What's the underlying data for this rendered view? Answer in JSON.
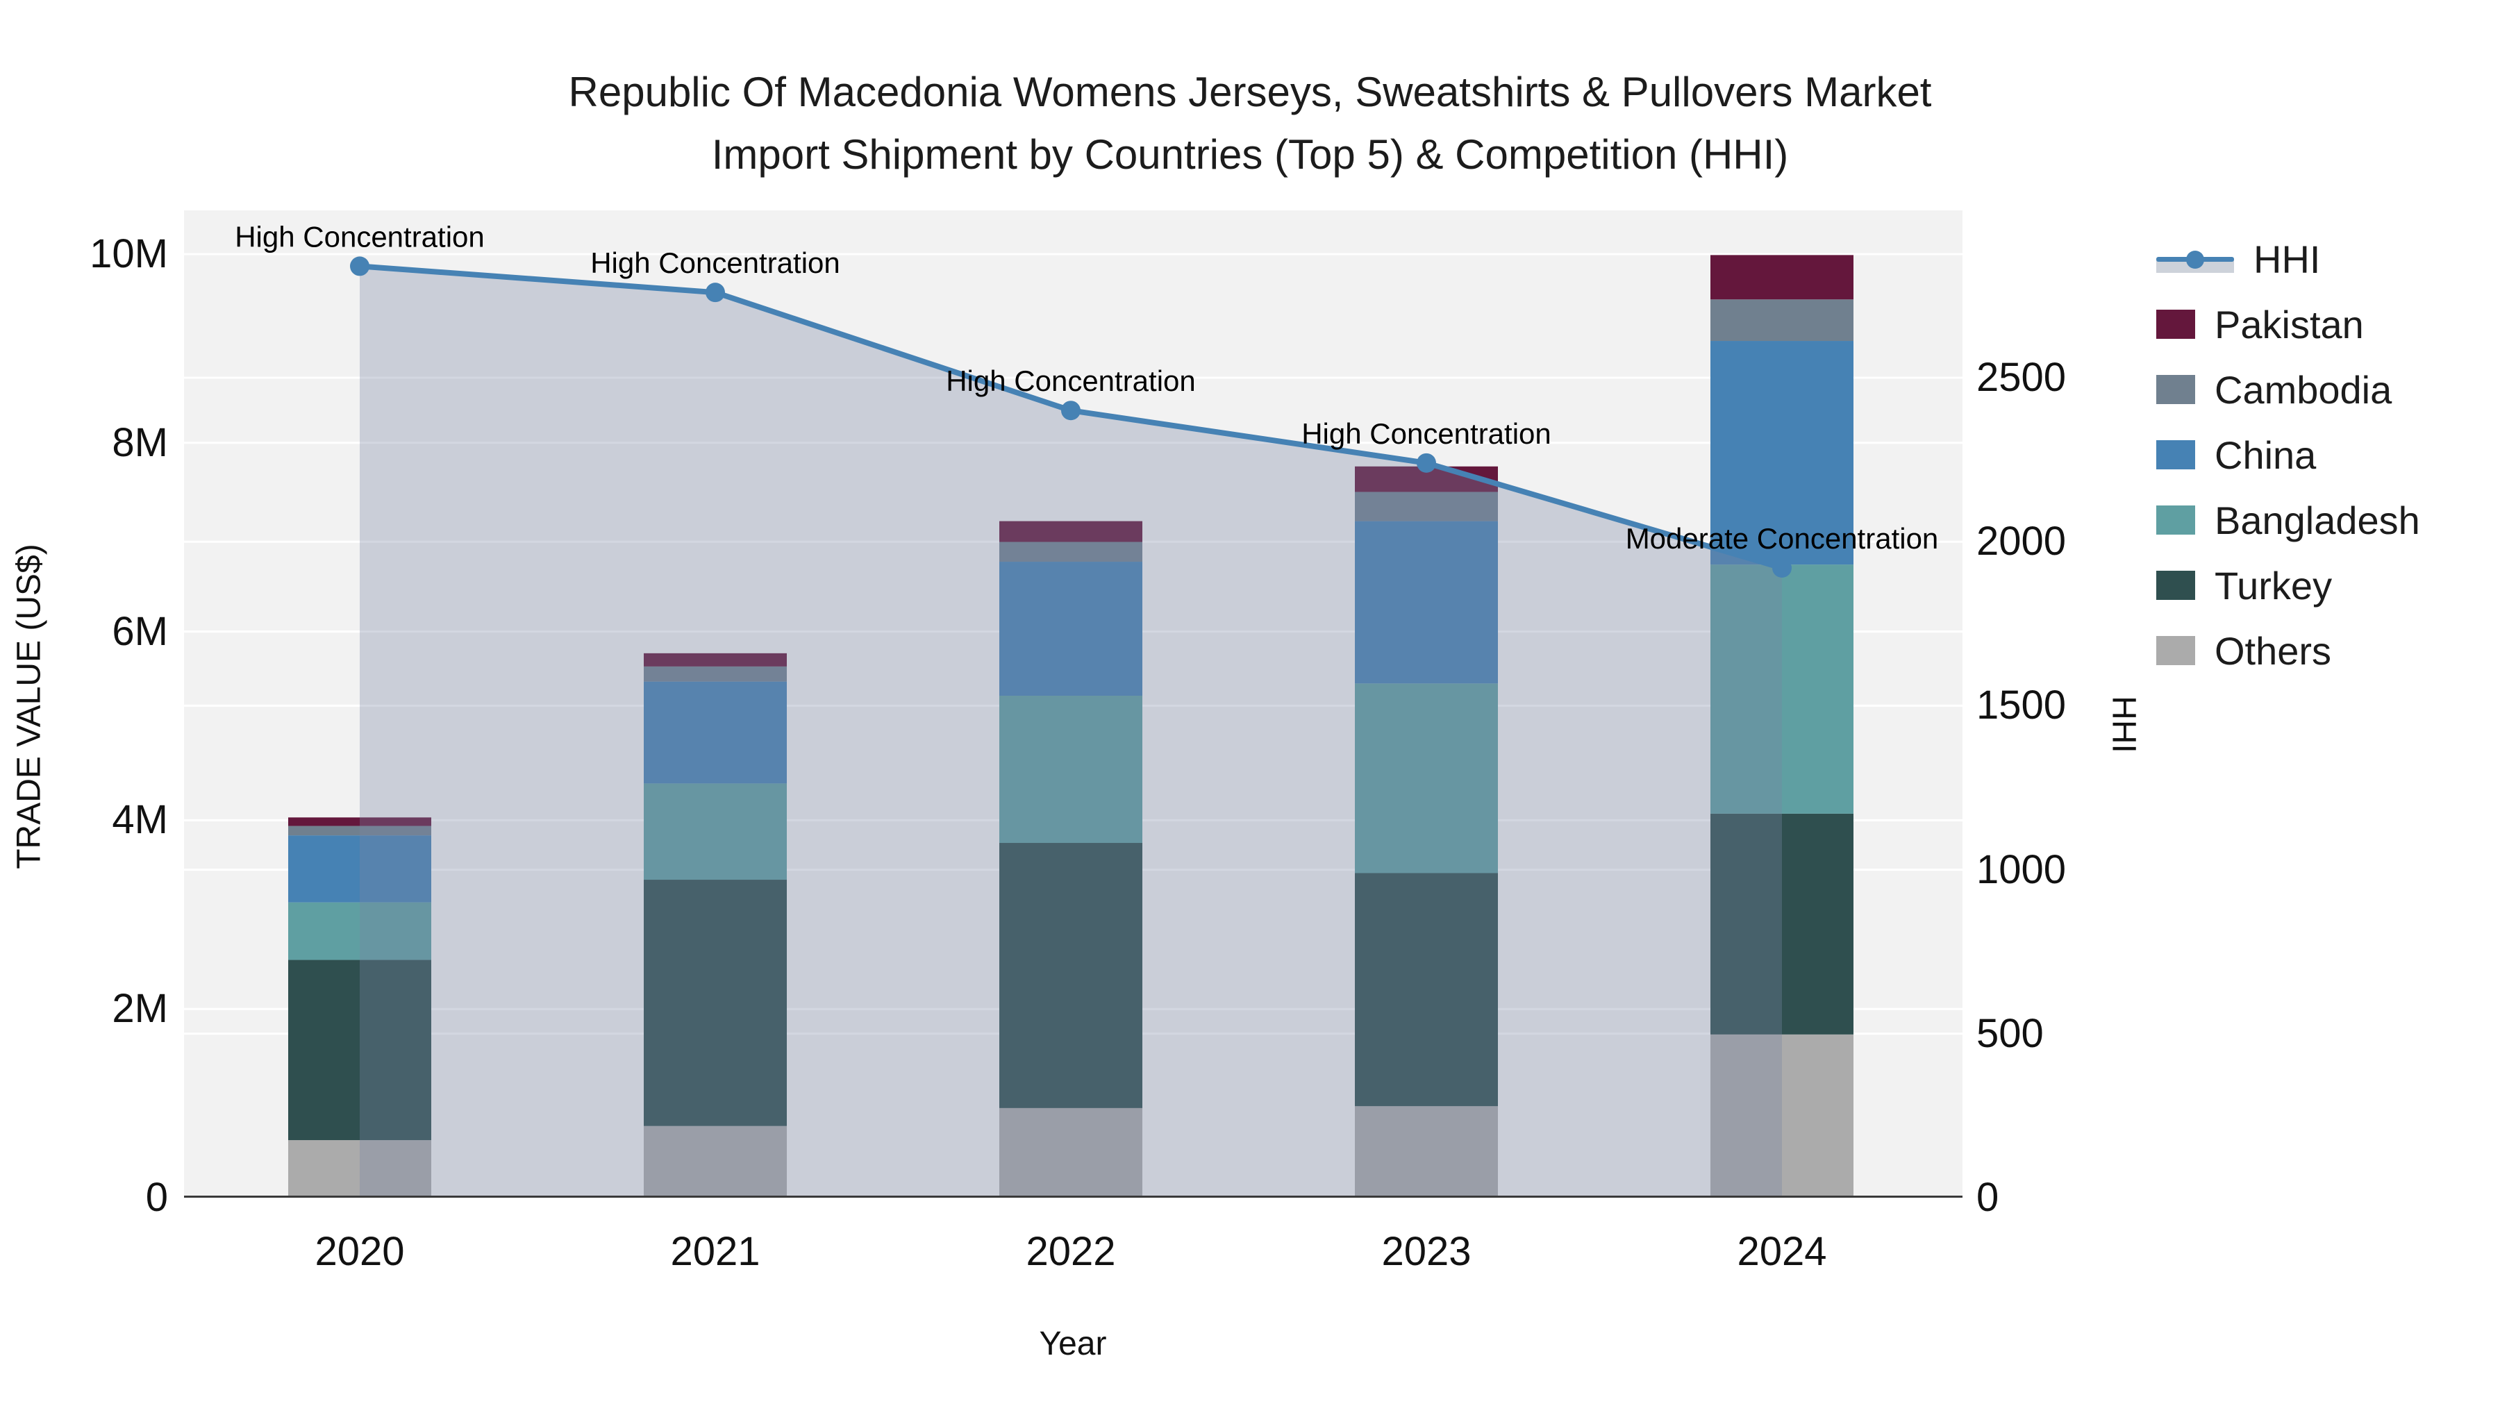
{
  "title": {
    "line1": "Republic Of Macedonia Womens Jerseys, Sweatshirts & Pullovers Market",
    "line2": "Import Shipment by Countries (Top 5) & Competition (HHI)"
  },
  "axes": {
    "y_left_title": "TRADE VALUE (US$)",
    "y_right_title": "HHI",
    "x_title": "Year",
    "y_left_ticks": [
      "0",
      "2M",
      "4M",
      "6M",
      "8M",
      "10M"
    ],
    "y_right_ticks": [
      "0",
      "500",
      "1000",
      "1500",
      "2000",
      "2500"
    ],
    "x_ticks": [
      "2020",
      "2021",
      "2022",
      "2023",
      "2024"
    ]
  },
  "legend": {
    "items": [
      {
        "label": "HHI",
        "type": "line",
        "color": "#4682b4"
      },
      {
        "label": "Pakistan",
        "type": "bar",
        "color": "#64173c"
      },
      {
        "label": "Cambodia",
        "type": "bar",
        "color": "#70808f"
      },
      {
        "label": "China",
        "type": "bar",
        "color": "#4682b4"
      },
      {
        "label": "Bangladesh",
        "type": "bar",
        "color": "#5f9fa2"
      },
      {
        "label": "Turkey",
        "type": "bar",
        "color": "#2f4f4f"
      },
      {
        "label": "Others",
        "type": "bar",
        "color": "#ababab"
      }
    ]
  },
  "colors": {
    "plot_background": "#f2f2f2",
    "gridline": "#ffffff",
    "axis_line": "#3a3a3a",
    "hhi_line": "#4682b4",
    "hhi_area_fill": "rgba(120,135,165,0.33)",
    "annotation_text": "#000000"
  },
  "chart_data": {
    "type": "bar",
    "subtype": "stacked-bars-with-line-on-secondary-axis",
    "categories": [
      "2020",
      "2021",
      "2022",
      "2023",
      "2024"
    ],
    "series": [
      {
        "name": "Others",
        "color": "#ababab",
        "values_musd": [
          0.61,
          0.76,
          0.95,
          0.97,
          1.73
        ]
      },
      {
        "name": "Turkey",
        "color": "#2f4f4f",
        "values_musd": [
          1.91,
          2.61,
          2.81,
          2.47,
          2.34
        ]
      },
      {
        "name": "Bangladesh",
        "color": "#5f9fa2",
        "values_musd": [
          0.61,
          1.02,
          1.56,
          2.01,
          2.64
        ]
      },
      {
        "name": "China",
        "color": "#4682b4",
        "values_musd": [
          0.71,
          1.08,
          1.42,
          1.72,
          2.37
        ]
      },
      {
        "name": "Cambodia",
        "color": "#70808f",
        "values_musd": [
          0.1,
          0.16,
          0.21,
          0.31,
          0.44
        ]
      },
      {
        "name": "Pakistan",
        "color": "#64173c",
        "values_musd": [
          0.09,
          0.14,
          0.22,
          0.27,
          0.47
        ]
      }
    ],
    "bar_totals_musd": [
      4.03,
      5.77,
      7.17,
      7.75,
      9.99
    ],
    "line_series": {
      "name": "HHI",
      "values": [
        2840,
        2760,
        2400,
        2240,
        1920
      ],
      "color": "#4682b4",
      "area_fill": "rgba(120,135,165,0.33)",
      "axis": "right"
    },
    "annotations": [
      {
        "category": "2020",
        "text": "High Concentration"
      },
      {
        "category": "2021",
        "text": "High Concentration"
      },
      {
        "category": "2022",
        "text": "High Concentration"
      },
      {
        "category": "2023",
        "text": "High Concentration"
      },
      {
        "category": "2024",
        "text": "Moderate Concentration"
      }
    ],
    "title": "Republic Of Macedonia Womens Jerseys, Sweatshirts & Pullovers Market Import Shipment by Countries (Top 5) & Competition (HHI)",
    "xlabel": "Year",
    "ylabel_left": "TRADE VALUE (US$)",
    "ylabel_right": "HHI",
    "y_left_lim_musd": [
      0,
      10.46
    ],
    "y_right_lim": [
      0,
      3010
    ],
    "grid": true,
    "legend_position": "right"
  }
}
